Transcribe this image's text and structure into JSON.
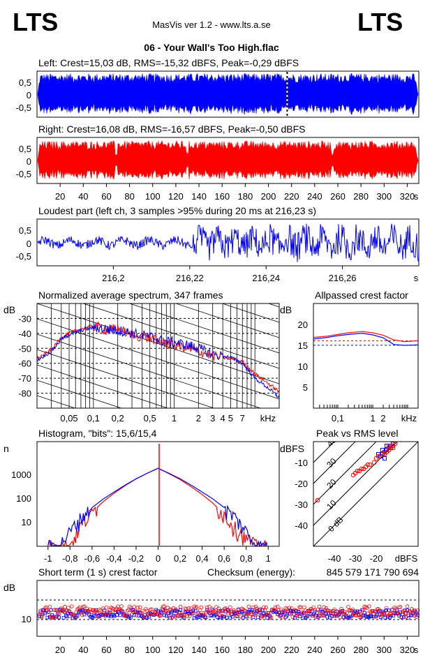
{
  "header": {
    "logo_left": "LTS",
    "logo_right": "LTS",
    "app_title": "MasVis ver 1.2 - www.lts.a.se",
    "file_title": "06 - Your Wall's Too High.flac"
  },
  "colors": {
    "left": "#0000ff",
    "right": "#ff0000",
    "grid": "#000000"
  },
  "chart_data": [
    {
      "id": "left-waveform",
      "type": "area",
      "title": "Left: Crest=15,03 dB, RMS=-15,32 dBFS, Peak=-0,29 dBFS",
      "yticks": [
        "0,5",
        "0",
        "-0,5"
      ],
      "ylim": [
        -1,
        1
      ],
      "xlim": [
        0,
        330
      ],
      "crest_db": 15.03,
      "rms_dbfs": -15.32,
      "peak_dbfs": -0.29,
      "marker_x_s": 216.23
    },
    {
      "id": "right-waveform",
      "type": "area",
      "title": "Right: Crest=16,08 dB, RMS=-16,57 dBFS, Peak=-0,50 dBFS",
      "yticks": [
        "0,5",
        "0",
        "-0,5"
      ],
      "xticks": [
        "20",
        "40",
        "60",
        "80",
        "100",
        "120",
        "140",
        "160",
        "180",
        "200",
        "220",
        "240",
        "260",
        "280",
        "300",
        "320"
      ],
      "xunit": "s",
      "ylim": [
        -1,
        1
      ],
      "xlim": [
        0,
        330
      ],
      "crest_db": 16.08,
      "rms_dbfs": -16.57,
      "peak_dbfs": -0.5
    },
    {
      "id": "loudest-part",
      "type": "line",
      "title": "Loudest part (left  ch, 3 samples >95% during 20 ms at 216,23 s)",
      "yticks": [
        "0,5",
        "0",
        "-0,5"
      ],
      "xticks": [
        "216,2",
        "216,22",
        "216,24",
        "216,26"
      ],
      "xunit": "s",
      "xlim": [
        216.18,
        216.28
      ],
      "ylim": [
        -1,
        1
      ]
    },
    {
      "id": "spectrum",
      "type": "line",
      "title": "Normalized average spectrum, 347 frames",
      "ylabel": "dB",
      "yticks": [
        "-30",
        "-40",
        "-50",
        "-60",
        "-70",
        "-80"
      ],
      "xticks": [
        "0,05",
        "0,1",
        "0,2",
        "0,5",
        "1",
        "2",
        "3",
        "4",
        "5",
        "7"
      ],
      "xunit": "kHz",
      "ylim": [
        -90,
        -20
      ],
      "xlim_khz": [
        0.02,
        20
      ],
      "series": [
        {
          "x": [
            0.02,
            0.03,
            0.04,
            0.05,
            0.07,
            0.1,
            0.15,
            0.2,
            0.3,
            0.5,
            0.7,
            1,
            1.5,
            2,
            3,
            5,
            7,
            10,
            15,
            20
          ],
          "y": [
            -58,
            -52,
            -44,
            -41,
            -38,
            -36,
            -37,
            -38,
            -40,
            -42,
            -45,
            -46,
            -48,
            -50,
            -54,
            -56,
            -60,
            -70,
            -77,
            -83
          ]
        },
        {
          "x": [
            0.02,
            0.03,
            0.04,
            0.05,
            0.07,
            0.1,
            0.15,
            0.2,
            0.3,
            0.5,
            0.7,
            1,
            1.5,
            2,
            3,
            5,
            7,
            10,
            15,
            20
          ],
          "y": [
            -57,
            -51,
            -43,
            -40,
            -37,
            -35,
            -38,
            -37,
            -41,
            -43,
            -46,
            -48,
            -50,
            -52,
            -55,
            -57,
            -59,
            -67,
            -74,
            -79
          ]
        }
      ]
    },
    {
      "id": "allpassed-crest",
      "type": "line",
      "title": "Allpassed crest factor",
      "ylabel": "dB",
      "yticks": [
        "20",
        "15",
        "10",
        "5"
      ],
      "xticks": [
        "0,1",
        "1",
        "2",
        "kHz"
      ],
      "ylim": [
        0,
        25
      ],
      "series": [
        {
          "x": [
            0.02,
            0.05,
            0.1,
            0.2,
            0.5,
            1,
            2,
            4,
            8,
            20
          ],
          "y": [
            16.5,
            16.9,
            17.3,
            17.6,
            17.9,
            17.5,
            16.8,
            15.2,
            15.0,
            15.1
          ]
        },
        {
          "x": [
            0.02,
            0.05,
            0.1,
            0.2,
            0.5,
            1,
            2,
            4,
            8,
            20
          ],
          "y": [
            16.9,
            17.2,
            17.6,
            18.0,
            18.3,
            18.0,
            17.4,
            16.3,
            15.9,
            16.1
          ]
        }
      ],
      "reference_lines": [
        15.03,
        16.08
      ]
    },
    {
      "id": "histogram",
      "type": "line",
      "title": "Histogram, \"bits\": 15,6/15,4",
      "ylabel": "n",
      "yticks": [
        "1000",
        "100",
        "10"
      ],
      "xticks": [
        "-1",
        "-0,8",
        "-0,6",
        "-0,4",
        "-0,2",
        "0",
        "0,2",
        "0,4",
        "0,6",
        "0,8",
        "1"
      ],
      "xlim": [
        -1.1,
        1.1
      ],
      "series": [
        {
          "x": [
            -1,
            -0.9,
            -0.8,
            -0.7,
            -0.6,
            -0.5,
            -0.4,
            -0.3,
            -0.2,
            -0.1,
            0,
            0.1,
            0.2,
            0.3,
            0.4,
            0.5,
            0.6,
            0.7,
            0.8,
            0.9,
            1
          ],
          "y": [
            1,
            1,
            4,
            16,
            40,
            90,
            180,
            350,
            650,
            1100,
            1800,
            1100,
            650,
            350,
            180,
            90,
            40,
            16,
            4,
            1,
            1
          ]
        },
        {
          "x": [
            -1,
            -0.9,
            -0.8,
            -0.7,
            -0.6,
            -0.5,
            -0.4,
            -0.3,
            -0.2,
            -0.1,
            0,
            0.1,
            0.2,
            0.3,
            0.4,
            0.5,
            0.6,
            0.7,
            0.8,
            0.9,
            1
          ],
          "y": [
            1,
            1,
            1,
            8,
            25,
            70,
            160,
            330,
            640,
            1100,
            1800,
            1050,
            600,
            300,
            140,
            60,
            20,
            6,
            2,
            1,
            1
          ]
        }
      ]
    },
    {
      "id": "peak-vs-rms",
      "type": "scatter",
      "title": "Peak vs RMS level",
      "ylabel": "dBFS",
      "xlabel": "dBFS",
      "yticks": [
        "-10",
        "-20",
        "-30",
        "-40"
      ],
      "xticks": [
        "-40",
        "-30",
        "-20"
      ],
      "xlim": [
        -50,
        0
      ],
      "ylim": [
        -50,
        0
      ],
      "crest_lines": [
        "0 dB",
        "10",
        "20",
        "30",
        "40"
      ],
      "series": [
        {
          "x": [
            -15,
            -14,
            -16,
            -17,
            -13,
            -15,
            -14,
            -16,
            -18,
            -15,
            -13,
            -12,
            -17,
            -19,
            -16
          ],
          "y": [
            -4,
            -3,
            -5,
            -6,
            -2,
            -4,
            -3,
            -8,
            -7,
            -2,
            -3,
            -1,
            -4,
            -6,
            -5
          ]
        },
        {
          "x": [
            -14,
            -13,
            -15,
            -16,
            -12,
            -14,
            -13,
            -15,
            -17,
            -14,
            -12,
            -11,
            -30,
            -31,
            -29,
            -28,
            -27,
            -26,
            -25,
            -24,
            -23,
            -21,
            -20,
            -19,
            -48
          ],
          "y": [
            -4,
            -3,
            -5,
            -6,
            -2,
            -4,
            -3,
            -5,
            -6,
            -2,
            -3,
            -1,
            -15,
            -16,
            -14,
            -14,
            -13,
            -13,
            -12,
            -11,
            -11,
            -10,
            -8,
            -7,
            -28
          ]
        }
      ]
    },
    {
      "id": "short-term-crest",
      "type": "scatter",
      "title": "Short term (1 s) crest factor",
      "checksum_label": "Checksum (energy):",
      "checksum_value": "845 579 171 790 694",
      "ylabel": "dB",
      "yticks": [
        "10"
      ],
      "xticks": [
        "20",
        "40",
        "60",
        "80",
        "100",
        "120",
        "140",
        "160",
        "180",
        "200",
        "220",
        "240",
        "260",
        "280",
        "300",
        "320"
      ],
      "xunit": "s",
      "xlim": [
        0,
        330
      ]
    }
  ]
}
